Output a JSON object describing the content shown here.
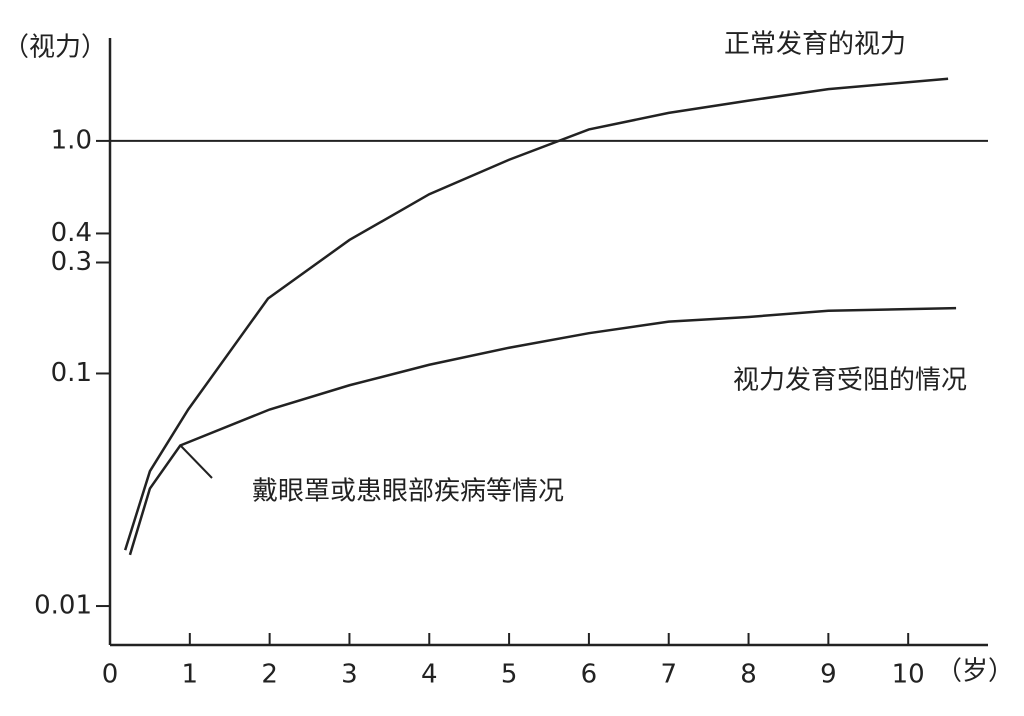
{
  "chart_data": {
    "type": "line",
    "y_label": "（视力）",
    "x_label": "（岁）",
    "log_y": true,
    "xlim": [
      0,
      11
    ],
    "xticks": [
      0,
      1,
      2,
      3,
      4,
      5,
      6,
      7,
      8,
      9,
      10
    ],
    "ylim": [
      0.0068,
      2.77
    ],
    "yticks": [
      0.01,
      0.1,
      0.3,
      0.4,
      {
        "value": 1,
        "label": "1.0"
      }
    ],
    "reference_line": 1,
    "series": [
      {
        "name": "正常发育的视力",
        "color": "#222",
        "x": [
          0.19,
          0.5,
          0.98,
          1.98,
          3.0,
          4.0,
          5.0,
          6.0,
          7.0,
          8.0,
          9.0,
          10.5
        ],
        "values": [
          0.0174,
          0.038,
          0.07,
          0.21,
          0.375,
          0.59,
          0.83,
          1.12,
          1.32,
          1.49,
          1.67,
          1.85
        ]
      },
      {
        "name": "视力发育受阻的情况",
        "color": "#222",
        "x": [
          0.25,
          0.5,
          0.88,
          2.0,
          3.0,
          4.0,
          5.0,
          6.0,
          7.0,
          8.0,
          9.0,
          10.6
        ],
        "values": [
          0.0166,
          0.032,
          0.049,
          0.07,
          0.089,
          0.109,
          0.129,
          0.149,
          0.167,
          0.175,
          0.186,
          0.191
        ]
      }
    ],
    "annotation": "戴眼罩或患眼部疾病等情况"
  }
}
